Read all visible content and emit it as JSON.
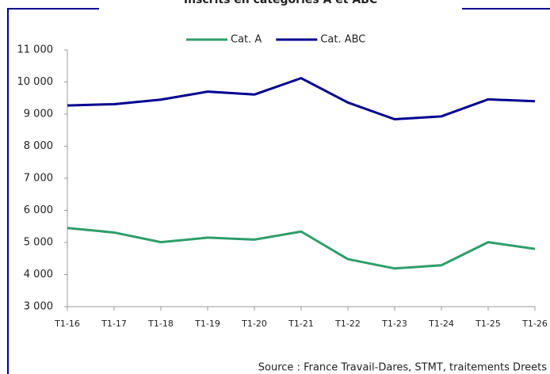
{
  "chart_data": {
    "type": "line",
    "title": "Inscrits en catégories A et ABC",
    "source": "Source : France Travail-Dares, STMT, traitements Dreets",
    "categories": [
      "T1-16",
      "T1-17",
      "T1-18",
      "T1-19",
      "T1-20",
      "T1-21",
      "T1-22",
      "T1-23",
      "T1-24",
      "T1-25",
      "T1-26"
    ],
    "series": [
      {
        "name": "Cat. A",
        "color": "#2e9e6b",
        "values": [
          5450,
          5310,
          5010,
          5150,
          5090,
          5340,
          4480,
          4190,
          4290,
          5010,
          4800
        ]
      },
      {
        "name": "Cat. ABC",
        "color": "#000091",
        "values": [
          9270,
          9310,
          9450,
          9700,
          9610,
          10120,
          9360,
          8840,
          8930,
          9460,
          9400
        ]
      }
    ],
    "ylim": [
      3000,
      11000
    ],
    "yticks": [
      {
        "value": 3000,
        "label": "3 000"
      },
      {
        "value": 4000,
        "label": "4 000"
      },
      {
        "value": 5000,
        "label": "5 000"
      },
      {
        "value": 6000,
        "label": "6 000"
      },
      {
        "value": 7000,
        "label": "7 000"
      },
      {
        "value": 8000,
        "label": "8 000"
      },
      {
        "value": 9000,
        "label": "9 000"
      },
      {
        "value": 10000,
        "label": "10 000"
      },
      {
        "value": 11000,
        "label": "11 000"
      }
    ],
    "grid": false,
    "legend": "top"
  }
}
